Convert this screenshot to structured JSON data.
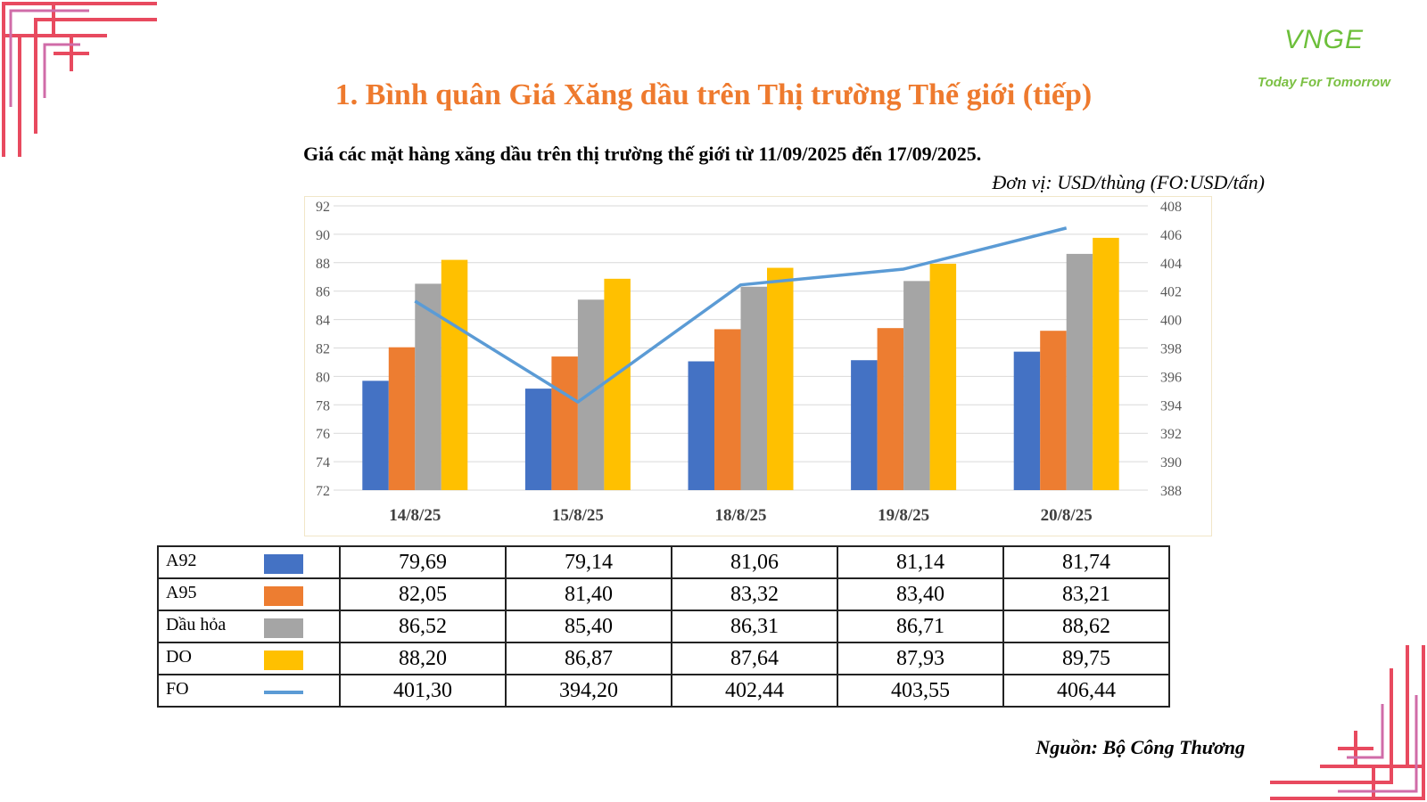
{
  "title": "1. Bình quân Giá Xăng dầu trên Thị trường Thế giới (tiếp)",
  "subtitle": "Giá các mặt hàng xăng dầu trên thị trường thế giới từ 11/09/2025 đến 17/09/2025.",
  "unit_note": "Đơn vị: USD/thùng (FO:USD/tấn)",
  "source": "Nguồn: Bộ Công Thương",
  "logo": {
    "mark": "VNGE",
    "tagline": "Today For Tomorrow"
  },
  "colors": {
    "title": "#ee7a2e",
    "a92": "#4472c4",
    "a95": "#ed7d31",
    "dau_hoa": "#a5a5a5",
    "do": "#ffc000",
    "fo": "#5b9bd5",
    "deco": "#e84a5f"
  },
  "chart_data": {
    "type": "bar",
    "categories": [
      "14/8/25",
      "15/8/25",
      "18/8/25",
      "19/8/25",
      "20/8/25"
    ],
    "series": [
      {
        "name": "A92",
        "type": "bar",
        "axis": "left",
        "values": [
          79.69,
          79.14,
          81.06,
          81.14,
          81.74
        ],
        "labels": [
          "79,69",
          "79,14",
          "81,06",
          "81,14",
          "81,74"
        ]
      },
      {
        "name": "A95",
        "type": "bar",
        "axis": "left",
        "values": [
          82.05,
          81.4,
          83.32,
          83.4,
          83.21
        ],
        "labels": [
          "82,05",
          "81,40",
          "83,32",
          "83,40",
          "83,21"
        ]
      },
      {
        "name": "Dầu hỏa",
        "type": "bar",
        "axis": "left",
        "values": [
          86.52,
          85.4,
          86.31,
          86.71,
          88.62
        ],
        "labels": [
          "86,52",
          "85,40",
          "86,31",
          "86,71",
          "88,62"
        ]
      },
      {
        "name": "DO",
        "type": "bar",
        "axis": "left",
        "values": [
          88.2,
          86.87,
          87.64,
          87.93,
          89.75
        ],
        "labels": [
          "88,20",
          "86,87",
          "87,64",
          "87,93",
          "89,75"
        ]
      },
      {
        "name": "FO",
        "type": "line",
        "axis": "right",
        "values": [
          401.3,
          394.2,
          402.44,
          403.55,
          406.44
        ],
        "labels": [
          "401,30",
          "394,20",
          "402,44",
          "403,55",
          "406,44"
        ]
      }
    ],
    "ylim": [
      72,
      92
    ],
    "yticks": [
      72,
      74,
      76,
      78,
      80,
      82,
      84,
      86,
      88,
      90,
      92
    ],
    "y2lim": [
      388,
      408
    ],
    "y2ticks": [
      388,
      390,
      392,
      394,
      396,
      398,
      400,
      402,
      404,
      406,
      408
    ],
    "grid": true,
    "legend": "table-below"
  }
}
